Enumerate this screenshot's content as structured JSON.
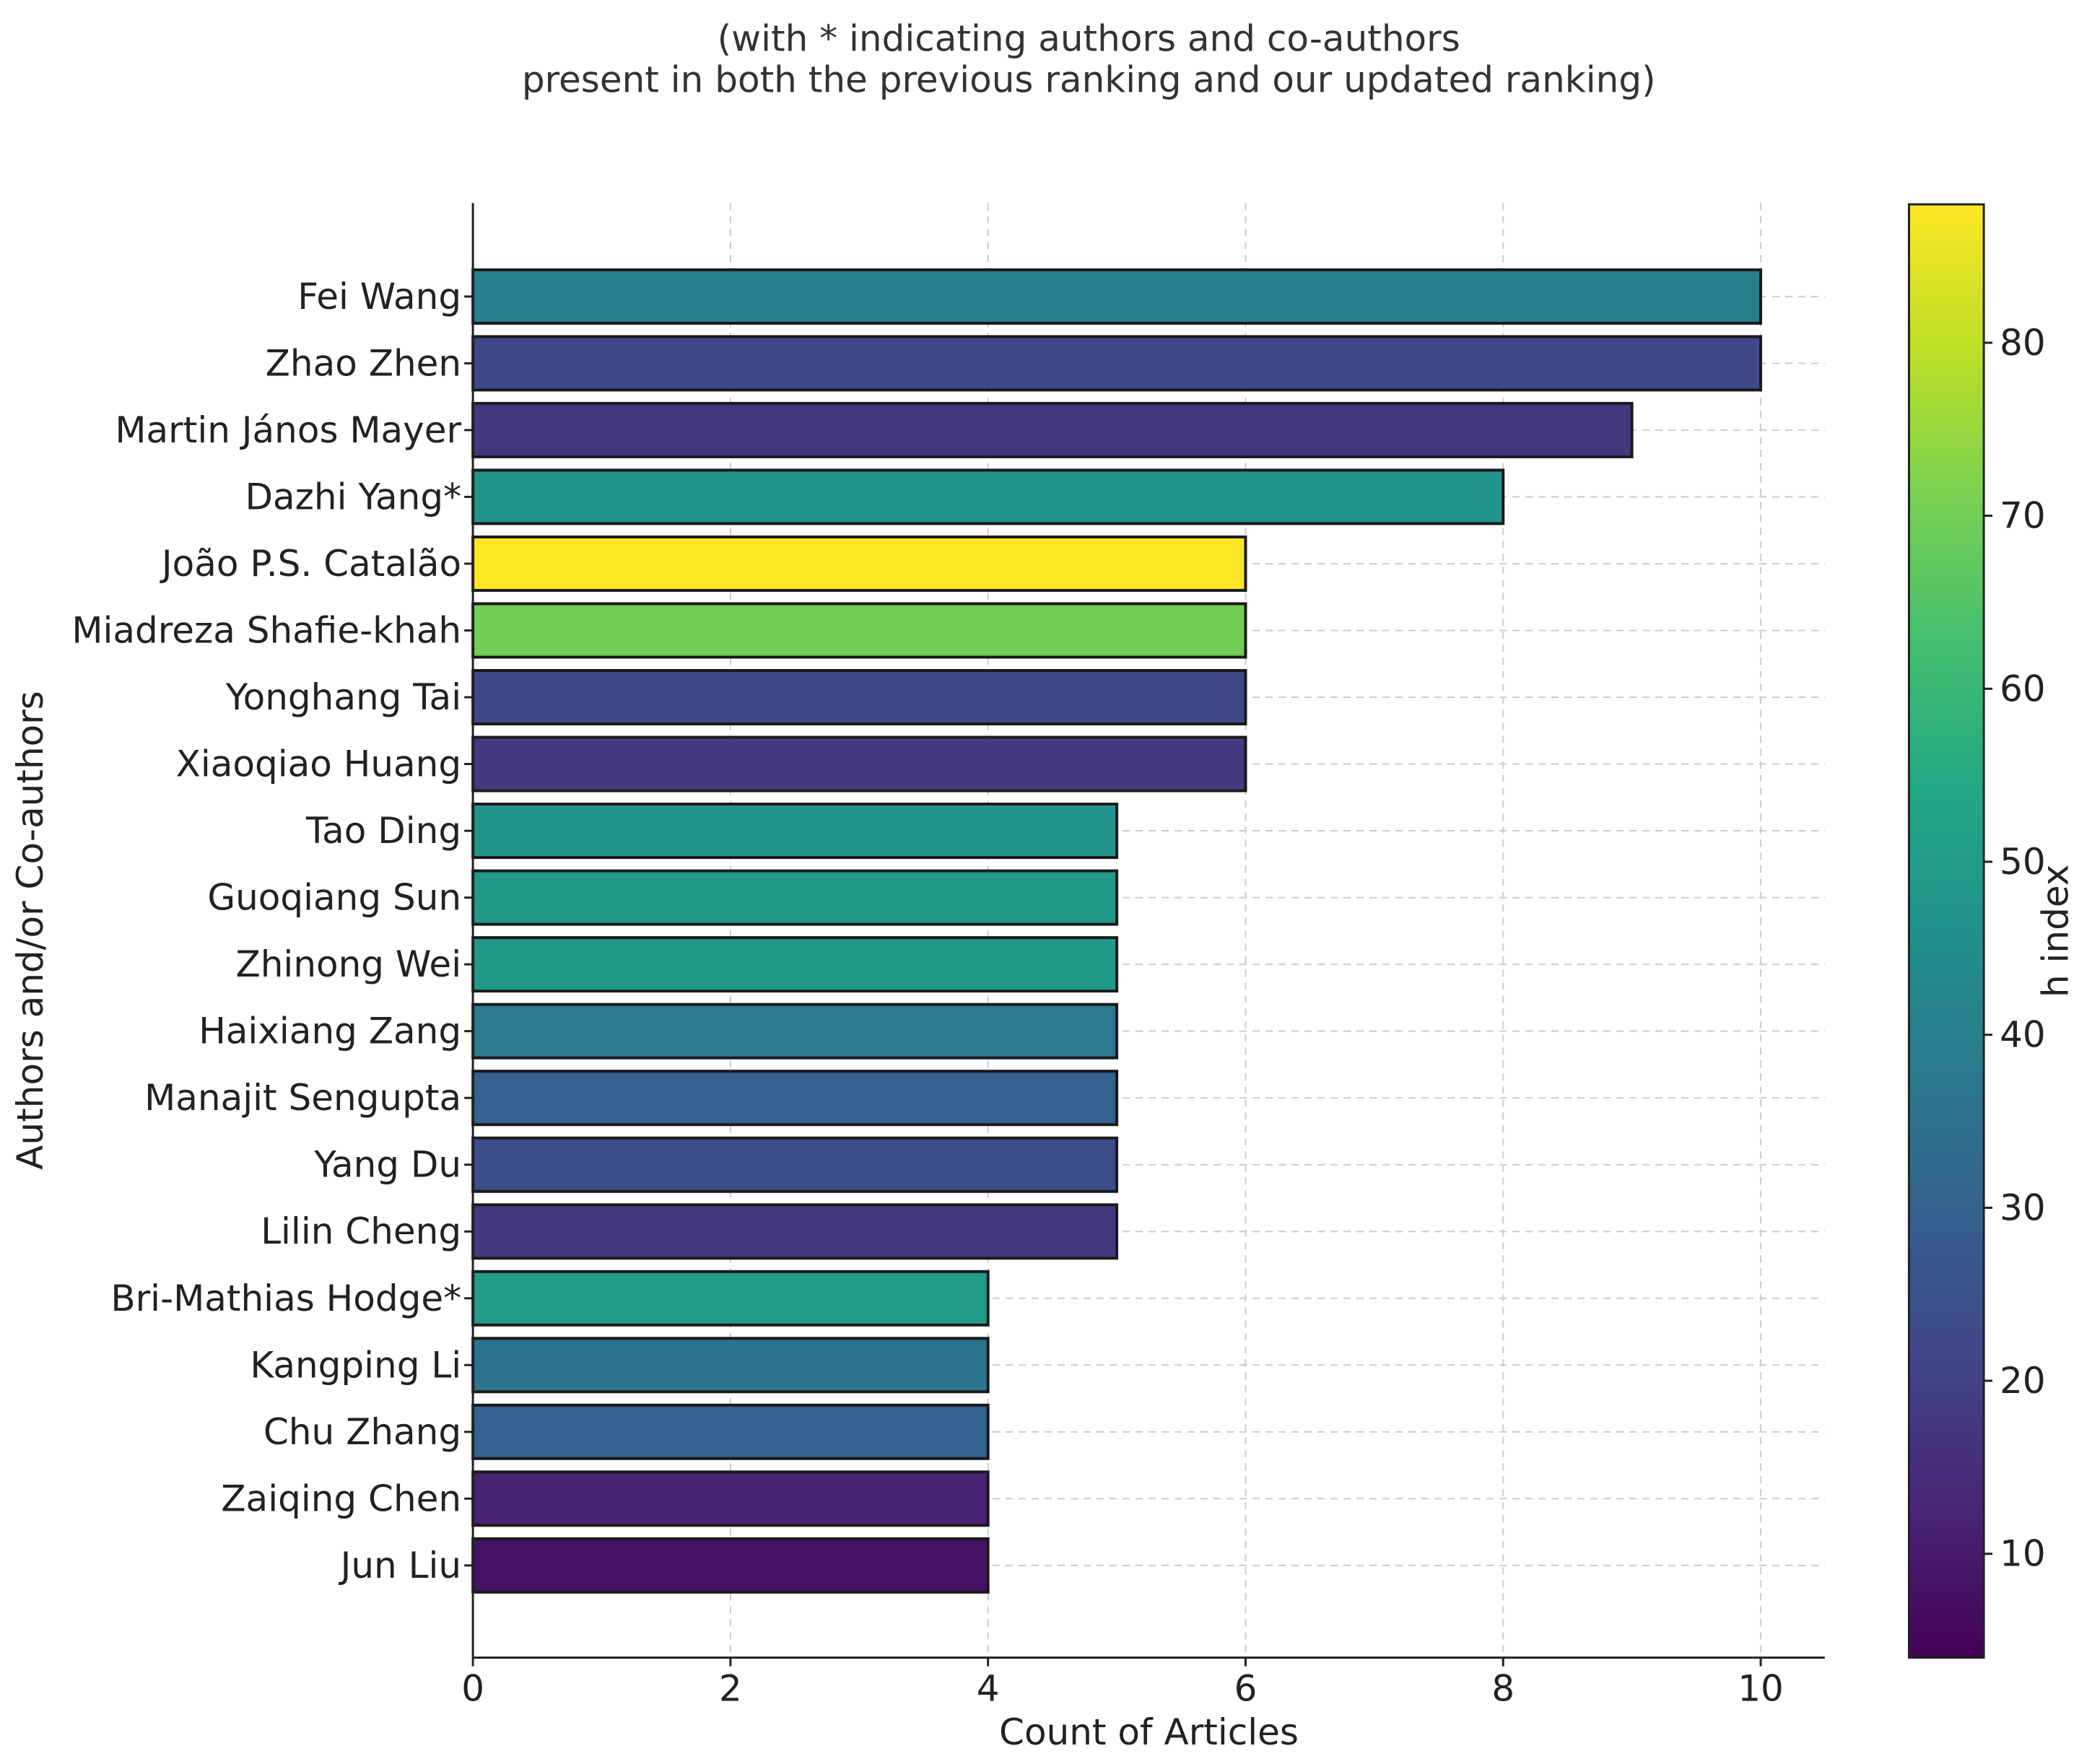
{
  "chart_data": {
    "type": "bar",
    "orientation": "horizontal",
    "title": "(with * indicating authors and co-authors present in both the previous ranking and our updated ranking)",
    "title_lines": [
      "(with * indicating authors and co-authors",
      "present in both the previous ranking and our updated ranking)"
    ],
    "xlabel": "Count of Articles",
    "ylabel": "Authors and/or Co-authors",
    "xlim": [
      0,
      10.5
    ],
    "xticks": [
      0,
      2,
      4,
      6,
      8,
      10
    ],
    "grid": true,
    "categories": [
      "Fei Wang",
      "Zhao Zhen",
      "Martin János Mayer",
      "Dazhi Yang*",
      "João P.S. Catalão",
      "Miadreza Shafie-khah",
      "Yonghang Tai",
      "Xiaoqiao Huang",
      "Tao Ding",
      "Guoqiang Sun",
      "Zhinong Wei",
      "Haixiang Zang",
      "Manajit Sengupta",
      "Yang Du",
      "Lilin Cheng",
      "Bri-Mathias Hodge*",
      "Kangping Li",
      "Chu Zhang",
      "Zaiqing Chen",
      "Jun Liu"
    ],
    "values": [
      10,
      10,
      9,
      8,
      6,
      6,
      6,
      6,
      5,
      5,
      5,
      5,
      5,
      5,
      5,
      4,
      4,
      4,
      4,
      4
    ],
    "color_values": [
      40,
      22,
      17,
      47,
      88,
      70,
      22,
      18,
      47,
      49,
      49,
      38,
      30,
      24,
      18,
      50,
      36,
      30,
      12,
      8
    ],
    "colorbar": {
      "label": "h index",
      "range": [
        4,
        88
      ],
      "ticks": [
        10,
        20,
        30,
        40,
        50,
        60,
        70,
        80
      ],
      "colormap": "viridis"
    }
  }
}
